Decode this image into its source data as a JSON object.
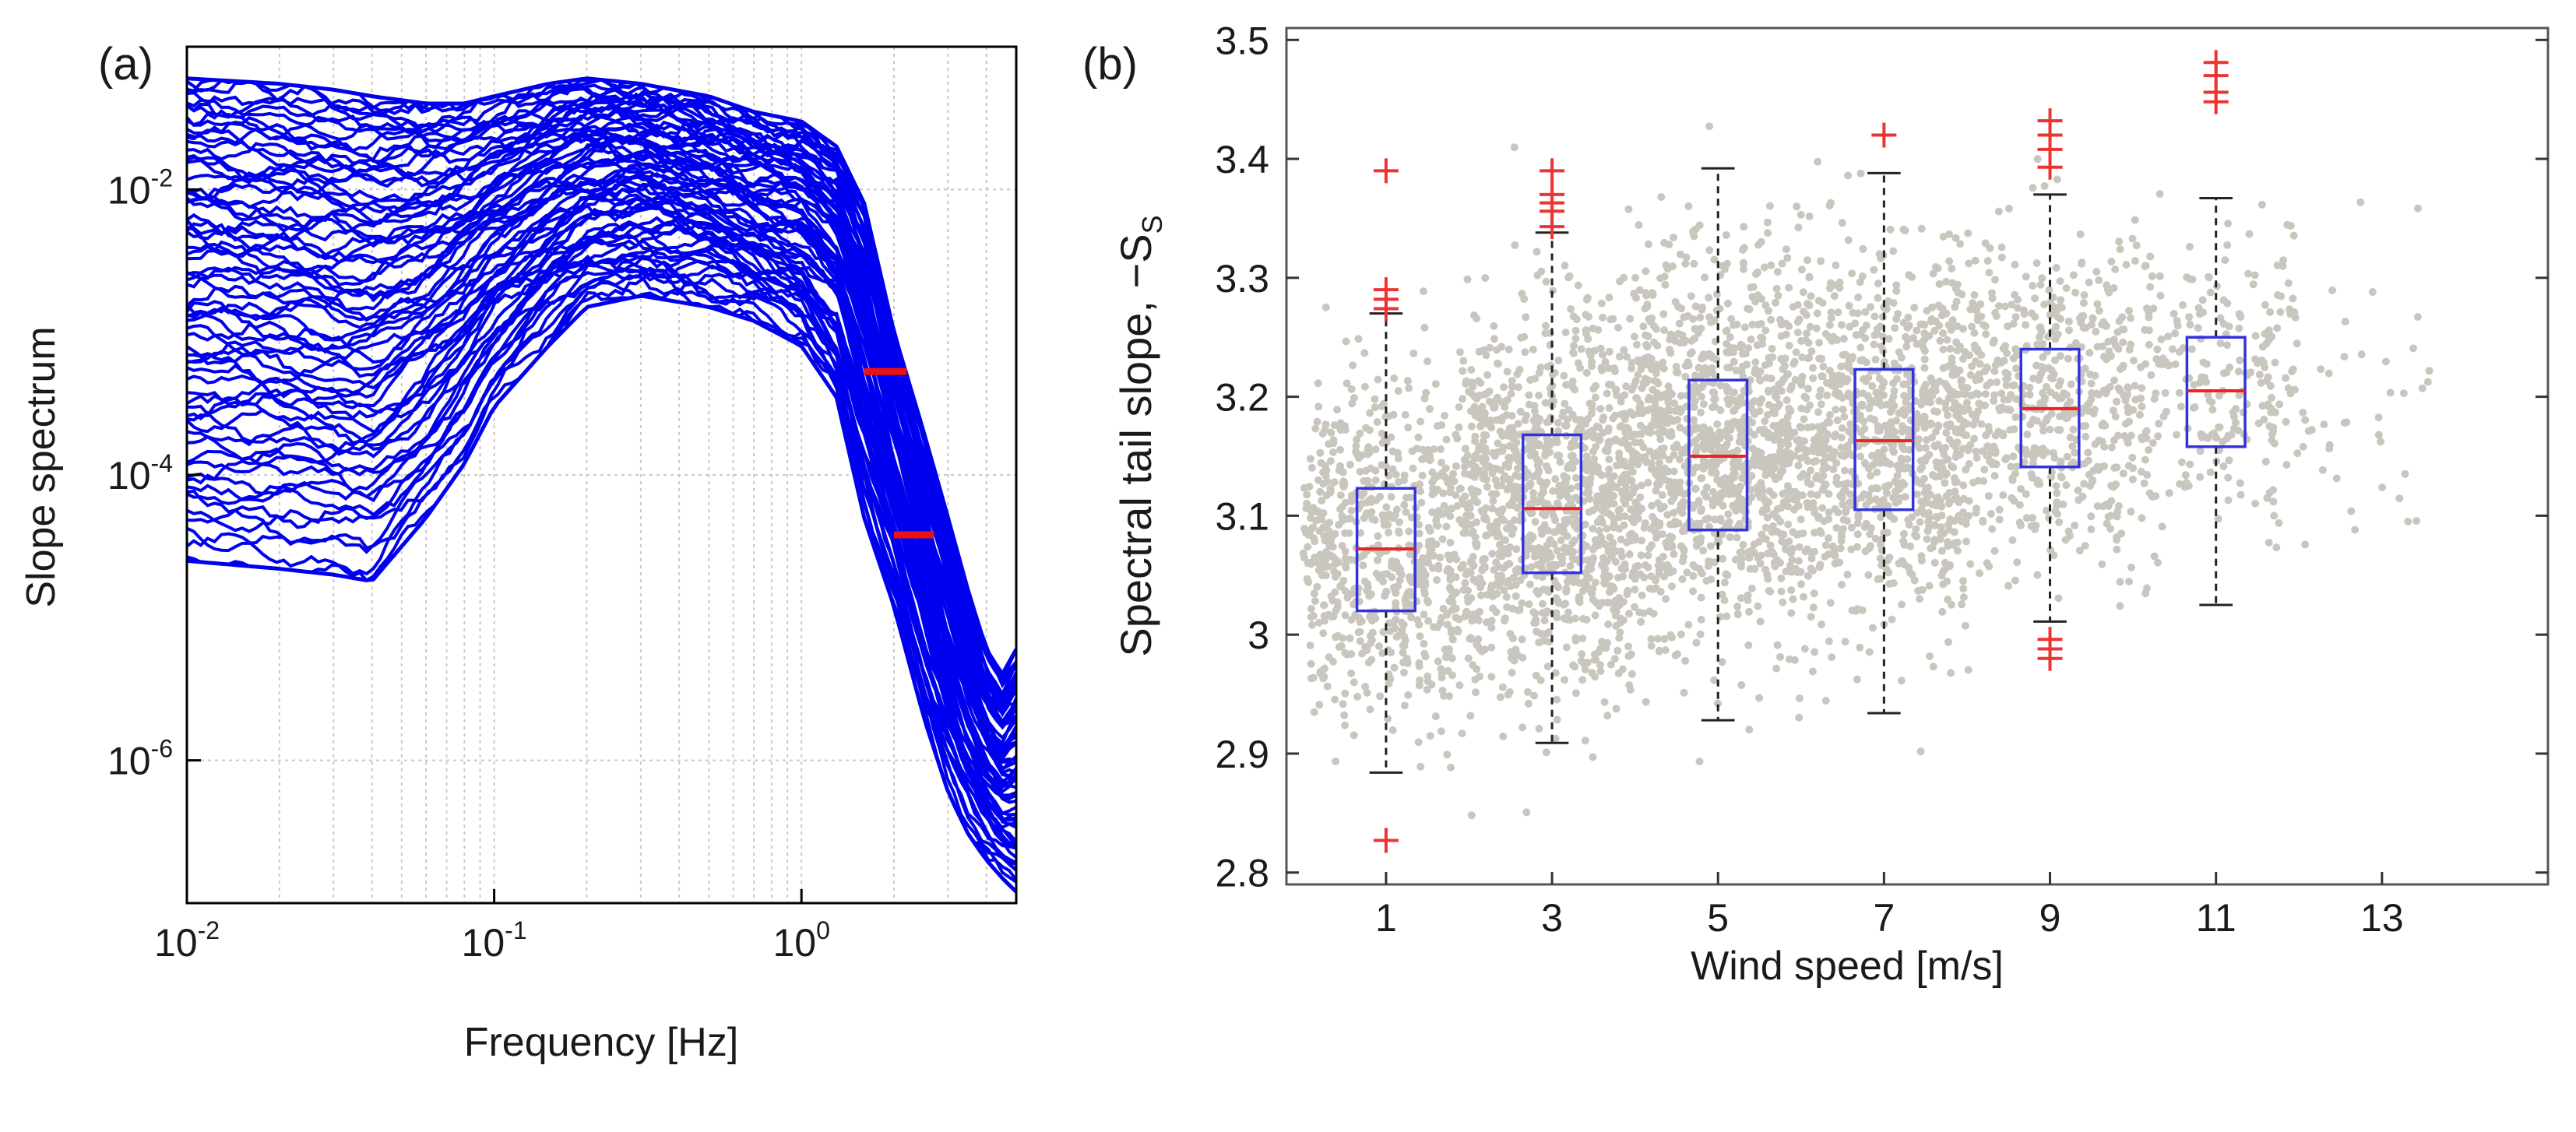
{
  "chart_data": [
    {
      "type": "line",
      "panel_label": "(a)",
      "xlabel": "Frequency [Hz]",
      "ylabel": "Slope spectrum",
      "xscale": "log",
      "yscale": "log",
      "xlim": [
        0.01,
        5
      ],
      "ylim": [
        1e-07,
        0.1
      ],
      "grid": true,
      "x_ticks": [
        {
          "value": 0.01,
          "base": "10",
          "exp": "-2"
        },
        {
          "value": 0.1,
          "base": "10",
          "exp": "-1"
        },
        {
          "value": 1,
          "base": "10",
          "exp": "0"
        }
      ],
      "y_ticks": [
        {
          "value": 1e-06,
          "base": "10",
          "exp": "-6"
        },
        {
          "value": 0.0001,
          "base": "10",
          "exp": "-4"
        },
        {
          "value": 0.01,
          "base": "10",
          "exp": "-2"
        }
      ],
      "series_color": "#0000ee",
      "spectra_envelope": {
        "freq": [
          0.01,
          0.02,
          0.03,
          0.04,
          0.06,
          0.08,
          0.1,
          0.15,
          0.2,
          0.3,
          0.5,
          0.7,
          1.0,
          1.3,
          1.6,
          2.0,
          2.5,
          3.0,
          3.5,
          4.0,
          4.5,
          5.0
        ],
        "upper": [
          0.06,
          0.055,
          0.05,
          0.045,
          0.04,
          0.04,
          0.045,
          0.055,
          0.06,
          0.055,
          0.045,
          0.035,
          0.03,
          0.02,
          0.008,
          0.001,
          0.0002,
          5e-05,
          1.5e-05,
          6e-06,
          4e-06,
          6e-06
        ],
        "lower": [
          2.5e-05,
          2.2e-05,
          2e-05,
          1.8e-05,
          5e-05,
          0.00012,
          0.0003,
          0.0008,
          0.0015,
          0.0018,
          0.0015,
          0.0012,
          0.0008,
          0.00035,
          5e-05,
          1.2e-05,
          2e-06,
          6e-07,
          3e-07,
          2e-07,
          1.5e-07,
          1.2e-07
        ]
      },
      "red_markers": [
        {
          "f1": 1.6,
          "f2": 2.2,
          "y": 0.00053
        },
        {
          "f1": 2.0,
          "f2": 2.7,
          "y": 3.8e-05
        }
      ],
      "marker_color": "#ee1111"
    },
    {
      "type": "box",
      "panel_label": "(b)",
      "xlabel": "Wind speed [m/s]",
      "ylabel": "Spectral tail slope, −S",
      "ylabel_sub": "S",
      "xlim": [
        -0.2,
        15
      ],
      "ylim": [
        2.79,
        3.51
      ],
      "x_ticks": [
        "1",
        "3",
        "5",
        "7",
        "9",
        "11",
        "13"
      ],
      "y_ticks": [
        "2.8",
        "2.9",
        "3",
        "3.1",
        "3.2",
        "3.3",
        "3.4",
        "3.5"
      ],
      "box_color": "#3333dd",
      "median_color": "#ee2222",
      "whisker_color": "#222222",
      "outlier_color": "#ee3333",
      "scatter_color": "#c9c6bd",
      "boxes": [
        {
          "x": 1,
          "q1": 3.02,
          "median": 3.072,
          "q3": 3.123,
          "whisker_low": 2.884,
          "whisker_high": 3.27,
          "outliers": [
            2.827,
            3.274,
            3.282,
            3.29,
            3.39
          ]
        },
        {
          "x": 3,
          "q1": 3.052,
          "median": 3.106,
          "q3": 3.168,
          "whisker_low": 2.909,
          "whisker_high": 3.338,
          "outliers": [
            3.343,
            3.356,
            3.363,
            3.37,
            3.39
          ]
        },
        {
          "x": 5,
          "q1": 3.088,
          "median": 3.15,
          "q3": 3.214,
          "whisker_low": 2.928,
          "whisker_high": 3.392,
          "outliers": []
        },
        {
          "x": 7,
          "q1": 3.105,
          "median": 3.163,
          "q3": 3.223,
          "whisker_low": 2.934,
          "whisker_high": 3.388,
          "outliers": [
            3.42
          ]
        },
        {
          "x": 9,
          "q1": 3.141,
          "median": 3.19,
          "q3": 3.24,
          "whisker_low": 3.011,
          "whisker_high": 3.37,
          "outliers": [
            2.98,
            2.988,
            2.996,
            3.393,
            3.408,
            3.42,
            3.432
          ]
        },
        {
          "x": 11,
          "q1": 3.158,
          "median": 3.205,
          "q3": 3.25,
          "whisker_low": 3.025,
          "whisker_high": 3.367,
          "outliers": [
            3.448,
            3.456,
            3.47,
            3.481
          ]
        }
      ],
      "scatter_groups": [
        {
          "x_min": 0.0,
          "x_max": 2.0,
          "mean": 3.07,
          "sd": 0.075,
          "count": 700
        },
        {
          "x_min": 2.0,
          "x_max": 4.0,
          "mean": 3.11,
          "sd": 0.08,
          "count": 1100
        },
        {
          "x_min": 4.0,
          "x_max": 6.0,
          "mean": 3.15,
          "sd": 0.08,
          "count": 1100
        },
        {
          "x_min": 6.0,
          "x_max": 8.0,
          "mean": 3.165,
          "sd": 0.078,
          "count": 900
        },
        {
          "x_min": 8.0,
          "x_max": 10.0,
          "mean": 3.19,
          "sd": 0.07,
          "count": 550
        },
        {
          "x_min": 10.0,
          "x_max": 12.0,
          "mean": 3.205,
          "sd": 0.065,
          "count": 260
        },
        {
          "x_min": 12.0,
          "x_max": 13.6,
          "mean": 3.2,
          "sd": 0.07,
          "count": 40
        }
      ]
    }
  ]
}
